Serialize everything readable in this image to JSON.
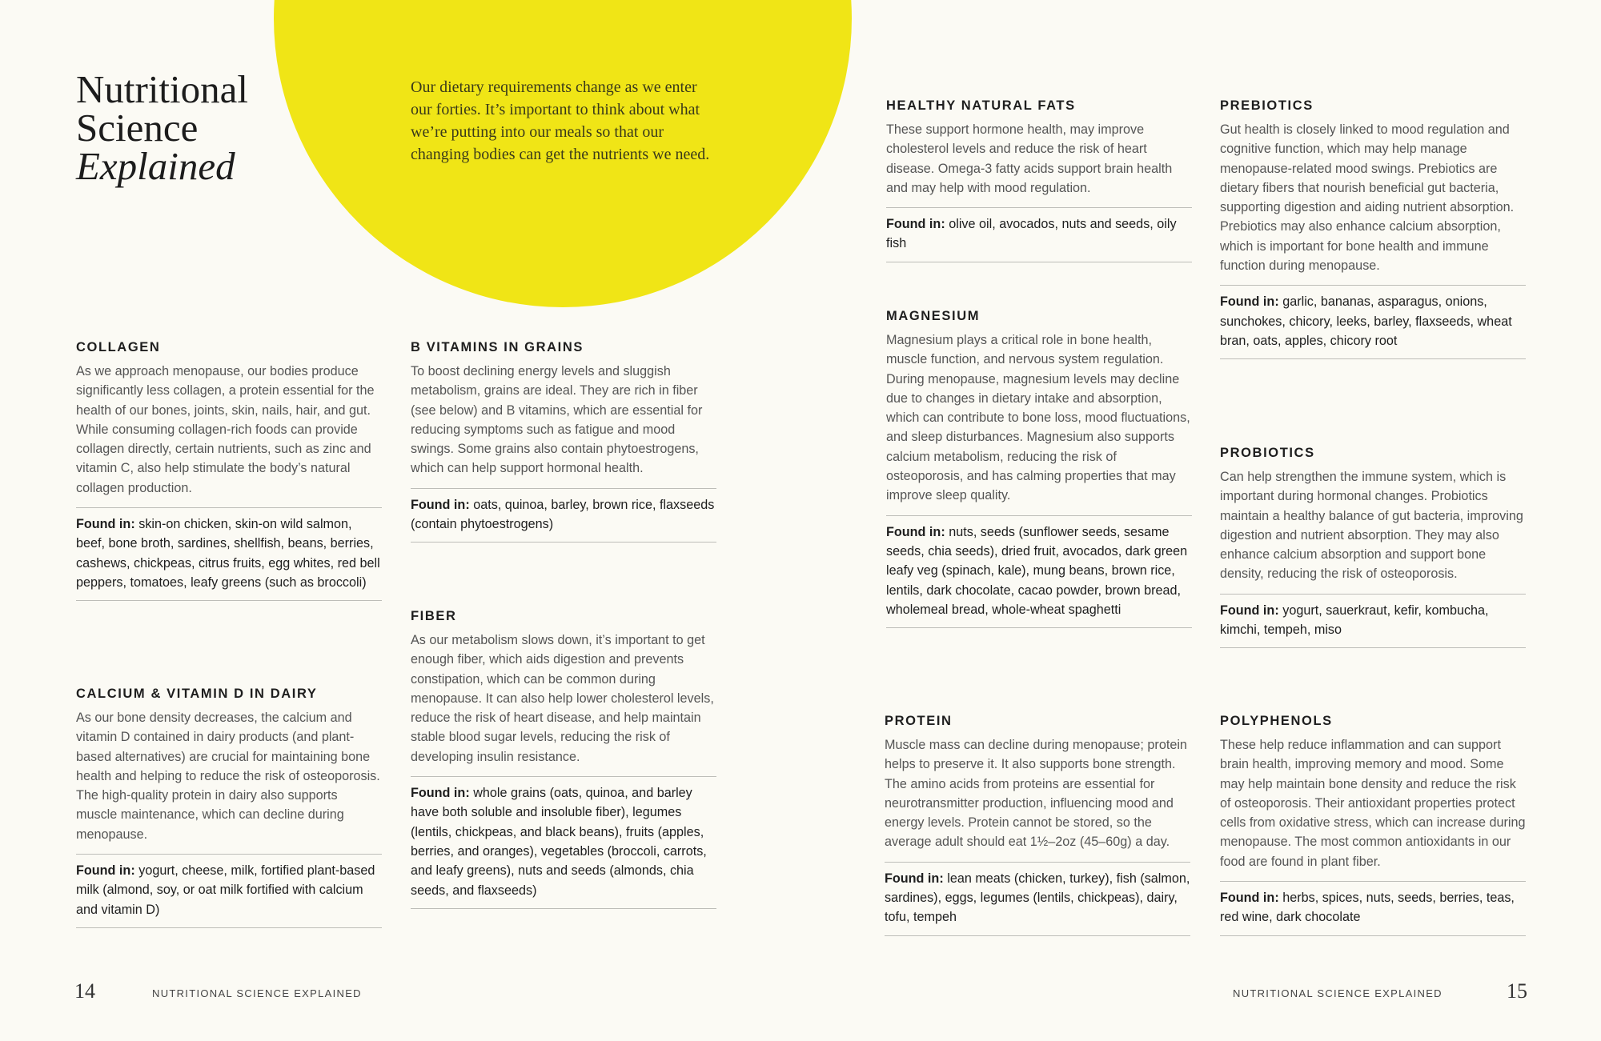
{
  "accent_color": "#f0e516",
  "header": {
    "title_line1": "Nutritional",
    "title_line2": "Science",
    "title_line3": "Explained",
    "intro": "Our dietary requirements change as we enter our forties. It’s important to think about what we’re putting into our meals so that our changing bodies can get the nutrients we need."
  },
  "found_label": "Found in:",
  "sections": [
    {
      "id": "collagen",
      "heading": "COLLAGEN",
      "body": "As we approach menopause, our bodies produce significantly less collagen, a protein essential for the health of our bones, joints, skin, nails, hair, and gut. While consuming collagen-rich foods can provide collagen directly, certain nutrients, such as zinc and vitamin C, also help stimulate the body’s natural collagen production.",
      "found": "skin-on chicken, skin-on wild salmon, beef, bone broth, sardines, shellfish, beans, berries, cashews, chickpeas, citrus fruits, egg whites, red bell peppers, tomatoes, leafy greens (such as broccoli)"
    },
    {
      "id": "calcium-vitamin-d",
      "heading": "CALCIUM & VITAMIN D IN DAIRY",
      "body": "As our bone density decreases, the calcium and vitamin D contained in dairy products (and plant-based alternatives) are crucial for maintaining bone health and helping to reduce the risk of osteoporosis. The high-quality protein in dairy also supports muscle maintenance, which can decline during menopause.",
      "found": "yogurt, cheese, milk, fortified plant-based milk (almond, soy, or oat milk fortified with calcium and vitamin D)"
    },
    {
      "id": "b-vitamins",
      "heading": "B VITAMINS IN GRAINS",
      "body": "To boost declining energy levels and sluggish metabolism, grains are ideal. They are rich in fiber (see below) and B vitamins, which are essential for reducing symptoms such as fatigue and mood swings. Some grains also contain phytoestrogens, which can help support hormonal health.",
      "found": "oats, quinoa, barley, brown rice, flaxseeds (contain phytoestrogens)"
    },
    {
      "id": "fiber",
      "heading": "FIBER",
      "body": "As our metabolism slows down, it’s important to get enough fiber, which aids digestion and prevents constipation, which can be common during menopause. It can also help lower cholesterol levels, reduce the risk of heart disease, and help maintain stable blood sugar levels, reducing the risk of developing insulin resistance.",
      "found": "whole grains (oats, quinoa, and barley have both soluble and insoluble fiber), legumes (lentils, chickpeas, and black beans), fruits (apples, berries, and oranges), vegetables (broccoli, carrots, and leafy greens), nuts and seeds (almonds, chia seeds, and flaxseeds)"
    },
    {
      "id": "healthy-fats",
      "heading": "HEALTHY NATURAL FATS",
      "body": "These support hormone health, may improve cholesterol levels and reduce the risk of heart disease. Omega-3 fatty acids support brain health and may help with mood regulation.",
      "found": "olive oil, avocados, nuts and seeds, oily fish"
    },
    {
      "id": "magnesium",
      "heading": "MAGNESIUM",
      "body": "Magnesium plays a critical role in bone health, muscle function, and nervous system regulation. During menopause, magnesium levels may decline due to changes in dietary intake and absorption, which can contribute to bone loss, mood fluctuations, and sleep disturbances. Magnesium also supports calcium metabolism, reducing the risk of osteoporosis, and has calming properties that may improve sleep quality.",
      "found": "nuts, seeds (sunflower seeds, sesame seeds, chia seeds), dried fruit, avocados, dark green leafy veg (spinach, kale), mung beans, brown rice, lentils, dark chocolate, cacao powder, brown bread, wholemeal bread, whole-wheat spaghetti"
    },
    {
      "id": "protein",
      "heading": "PROTEIN",
      "body": "Muscle mass can decline during menopause; protein helps to preserve it. It also supports bone strength. The amino acids from proteins are essential for neurotransmitter production, influencing mood and energy levels. Protein cannot be stored, so the average adult should eat 1½–2oz (45–60g) a day.",
      "found": "lean meats (chicken, turkey), fish (salmon, sardines), eggs, legumes (lentils, chickpeas), dairy, tofu, tempeh"
    },
    {
      "id": "prebiotics",
      "heading": "PREBIOTICS",
      "body": "Gut health is closely linked to mood regulation and cognitive function, which may help manage menopause-related mood swings. Prebiotics are dietary fibers that nourish beneficial gut bacteria, supporting digestion and aiding nutrient absorption. Prebiotics may also enhance calcium absorption, which is important for bone health and immune function during menopause.",
      "found": "garlic, bananas, asparagus, onions, sunchokes, chicory, leeks, barley, flaxseeds, wheat bran, oats, apples, chicory root"
    },
    {
      "id": "probiotics",
      "heading": "PROBIOTICS",
      "body": "Can help strengthen the immune system, which is important during hormonal changes. Probiotics maintain a healthy balance of gut bacteria, improving digestion and nutrient absorption. They may also enhance calcium absorption and support bone density, reducing the risk of osteoporosis.",
      "found": "yogurt, sauerkraut, kefir, kombucha, kimchi, tempeh, miso"
    },
    {
      "id": "polyphenols",
      "heading": "POLYPHENOLS",
      "body": "These help reduce inflammation and can support brain health, improving memory and mood. Some may help maintain bone density and reduce the risk of osteoporosis. Their antioxidant properties protect cells from oxidative stress, which can increase during menopause. The most common antioxidants in our food are found in plant fiber.",
      "found": "herbs, spices, nuts, seeds, berries, teas, red wine, dark chocolate"
    }
  ],
  "footer": {
    "left_page": "14",
    "left_running": "NUTRITIONAL SCIENCE EXPLAINED",
    "right_running": "NUTRITIONAL SCIENCE EXPLAINED",
    "right_page": "15"
  }
}
